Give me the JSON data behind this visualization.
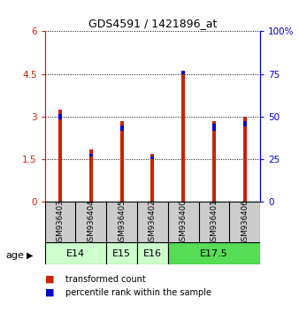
{
  "title": "GDS4591 / 1421896_at",
  "samples": [
    "GSM936403",
    "GSM936404",
    "GSM936405",
    "GSM936402",
    "GSM936400",
    "GSM936401",
    "GSM936406"
  ],
  "red_values": [
    3.25,
    1.85,
    2.85,
    1.7,
    4.6,
    2.85,
    3.0
  ],
  "blue_segment_bottom": [
    2.9,
    1.6,
    2.5,
    1.5,
    4.5,
    2.5,
    2.65
  ],
  "blue_segment_height": [
    0.18,
    0.1,
    0.18,
    0.1,
    0.12,
    0.25,
    0.18
  ],
  "ylim_left": [
    0,
    6
  ],
  "ylim_right": [
    0,
    100
  ],
  "yticks_left": [
    0,
    1.5,
    3.0,
    4.5,
    6.0
  ],
  "ytick_labels_left": [
    "0",
    "1.5",
    "3",
    "4.5",
    "6"
  ],
  "yticks_right": [
    0,
    25,
    50,
    75,
    100
  ],
  "ytick_labels_right": [
    "0",
    "25",
    "50",
    "75",
    "100%"
  ],
  "age_groups": [
    {
      "label": "E14",
      "start": 0,
      "end": 2,
      "color": "#ccffcc"
    },
    {
      "label": "E15",
      "start": 2,
      "end": 3,
      "color": "#ccffcc"
    },
    {
      "label": "E16",
      "start": 3,
      "end": 4,
      "color": "#ccffcc"
    },
    {
      "label": "E17.5",
      "start": 4,
      "end": 7,
      "color": "#55dd55"
    }
  ],
  "bar_color_red": "#cc2200",
  "bar_color_blue": "#0000cc",
  "bar_width": 0.12,
  "left_axis_color": "#cc2200",
  "right_axis_color": "#0000cc",
  "bg_color": "#ffffff",
  "sample_box_color": "#cccccc",
  "legend_red_label": "transformed count",
  "legend_blue_label": "percentile rank within the sample",
  "age_label": "age"
}
